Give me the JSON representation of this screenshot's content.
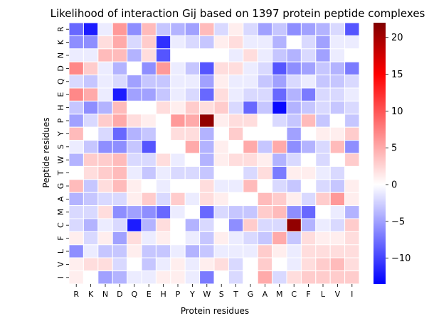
{
  "chart_data": {
    "type": "heatmap",
    "title": "Likelihood of interaction Gij based on 1397 protein peptide complexes",
    "xlabel": "Protein residues",
    "ylabel": "Peptide residues",
    "x_categories": [
      "R",
      "K",
      "N",
      "D",
      "Q",
      "E",
      "H",
      "P",
      "Y",
      "W",
      "S",
      "T",
      "G",
      "A",
      "M",
      "C",
      "F",
      "L",
      "V",
      "I"
    ],
    "y_categories": [
      "R",
      "K",
      "N",
      "D",
      "Q",
      "E",
      "H",
      "P",
      "Y",
      "S",
      "W",
      "T",
      "G",
      "A",
      "M",
      "C",
      "F",
      "L",
      "V",
      "I"
    ],
    "colorbar": {
      "vmin": -13.5,
      "vcenter": 0,
      "vmax": 22,
      "ticks": [
        -10,
        -5,
        0,
        5,
        10,
        15,
        20
      ],
      "tick_labels": [
        "−10",
        "−5",
        "0",
        "5",
        "10",
        "15",
        "20"
      ],
      "colors": {
        "low": "#0000ff",
        "mid": "#ffffff",
        "high": "#ff0000",
        "max": "#800000"
      }
    },
    "grid_lines": "white",
    "values": [
      [
        -8,
        -12,
        -1,
        6,
        -6,
        4,
        -3,
        -4,
        -5,
        4,
        -2,
        1,
        -2,
        -5,
        -3,
        -6,
        -5,
        -4,
        -2,
        -9
      ],
      [
        -6,
        -6,
        2,
        5,
        -2,
        3,
        -11,
        -1,
        -2,
        -3,
        1,
        2,
        -1,
        -1,
        -4,
        0,
        -2,
        -5,
        -1,
        -1
      ],
      [
        -1,
        -1,
        4,
        4,
        -4,
        2,
        -9,
        0,
        0,
        0,
        0,
        -1,
        2,
        -1,
        -3,
        -4,
        -2,
        -5,
        -1,
        0
      ],
      [
        7,
        3,
        -1,
        -4,
        0,
        -6,
        6,
        -1,
        -3,
        -9,
        2,
        2,
        -1,
        -2,
        -9,
        -6,
        -5,
        -3,
        -4,
        -7
      ],
      [
        -2,
        -3,
        -1,
        -2,
        -5,
        -3,
        -3,
        -1,
        -1,
        -5,
        1,
        -1,
        -1,
        -3,
        -5,
        -2,
        -1,
        -3,
        -3,
        -2
      ],
      [
        7,
        5,
        -1,
        -12,
        -5,
        -5,
        -3,
        -1,
        -2,
        -8,
        2,
        -1,
        -2,
        -2,
        -8,
        -4,
        -7,
        -2,
        -2,
        -1
      ],
      [
        -3,
        -6,
        -4,
        4,
        0,
        0,
        2,
        1,
        3,
        2,
        3,
        -2,
        -8,
        -3,
        -13,
        -4,
        -3,
        -2,
        -3,
        -2
      ],
      [
        -5,
        -2,
        3,
        5,
        2,
        1,
        0,
        6,
        5,
        21,
        1,
        2,
        2,
        0,
        -2,
        -3,
        4,
        -3,
        0,
        -3
      ],
      [
        4,
        0,
        -2,
        -8,
        -4,
        -3,
        0,
        2,
        2,
        -4,
        0,
        3,
        0,
        0,
        0,
        -5,
        0,
        1,
        1,
        3
      ],
      [
        -1,
        -3,
        -6,
        -6,
        -3,
        -9,
        0,
        0,
        5,
        -4,
        1,
        0,
        5,
        -3,
        5,
        -6,
        -4,
        -2,
        4,
        -6
      ],
      [
        -4,
        3,
        3,
        4,
        -2,
        -2,
        2,
        -1,
        0,
        -4,
        1,
        2,
        2,
        1,
        -4,
        -2,
        0,
        -2,
        0,
        3
      ],
      [
        0,
        2,
        3,
        4,
        -1,
        -3,
        -1,
        -2,
        -2,
        -3,
        0,
        0,
        -2,
        2,
        -7,
        1,
        1,
        -1,
        -2,
        0
      ],
      [
        4,
        -3,
        2,
        4,
        1,
        0,
        -1,
        0,
        0,
        2,
        -1,
        -1,
        4,
        0,
        -2,
        -3,
        0,
        -2,
        -3,
        1
      ],
      [
        -4,
        -3,
        -2,
        -2,
        1,
        3,
        -2,
        3,
        -1,
        2,
        1,
        0,
        0,
        4,
        3,
        1,
        -2,
        3,
        6,
        1
      ],
      [
        -2,
        -2,
        2,
        -6,
        -5,
        -6,
        -8,
        -1,
        0,
        -8,
        -2,
        -3,
        -3,
        3,
        4,
        -6,
        -8,
        0,
        -1,
        -4
      ],
      [
        -2,
        -4,
        -1,
        -2,
        -12,
        -4,
        2,
        0,
        -4,
        -2,
        0,
        -6,
        3,
        -2,
        -2,
        21,
        -4,
        -1,
        -2,
        3
      ],
      [
        1,
        -2,
        1,
        -5,
        2,
        -1,
        1,
        0,
        -1,
        -3,
        1,
        -1,
        -2,
        -3,
        5,
        -3,
        2,
        1,
        1,
        2
      ],
      [
        -6,
        -1,
        -3,
        -3,
        1,
        -3,
        -3,
        -1,
        -4,
        -3,
        -1,
        -1,
        -1,
        3,
        1,
        -1,
        2,
        2,
        2,
        2
      ],
      [
        1,
        2,
        2,
        -2,
        0,
        -3,
        -1,
        1,
        -1,
        1,
        2,
        -2,
        0,
        3,
        0,
        -1,
        2,
        3,
        4,
        2
      ],
      [
        1,
        0,
        -5,
        -4,
        -1,
        -1,
        1,
        1,
        -1,
        -7,
        0,
        -2,
        0,
        5,
        -2,
        2,
        3,
        3,
        3,
        3
      ]
    ]
  }
}
